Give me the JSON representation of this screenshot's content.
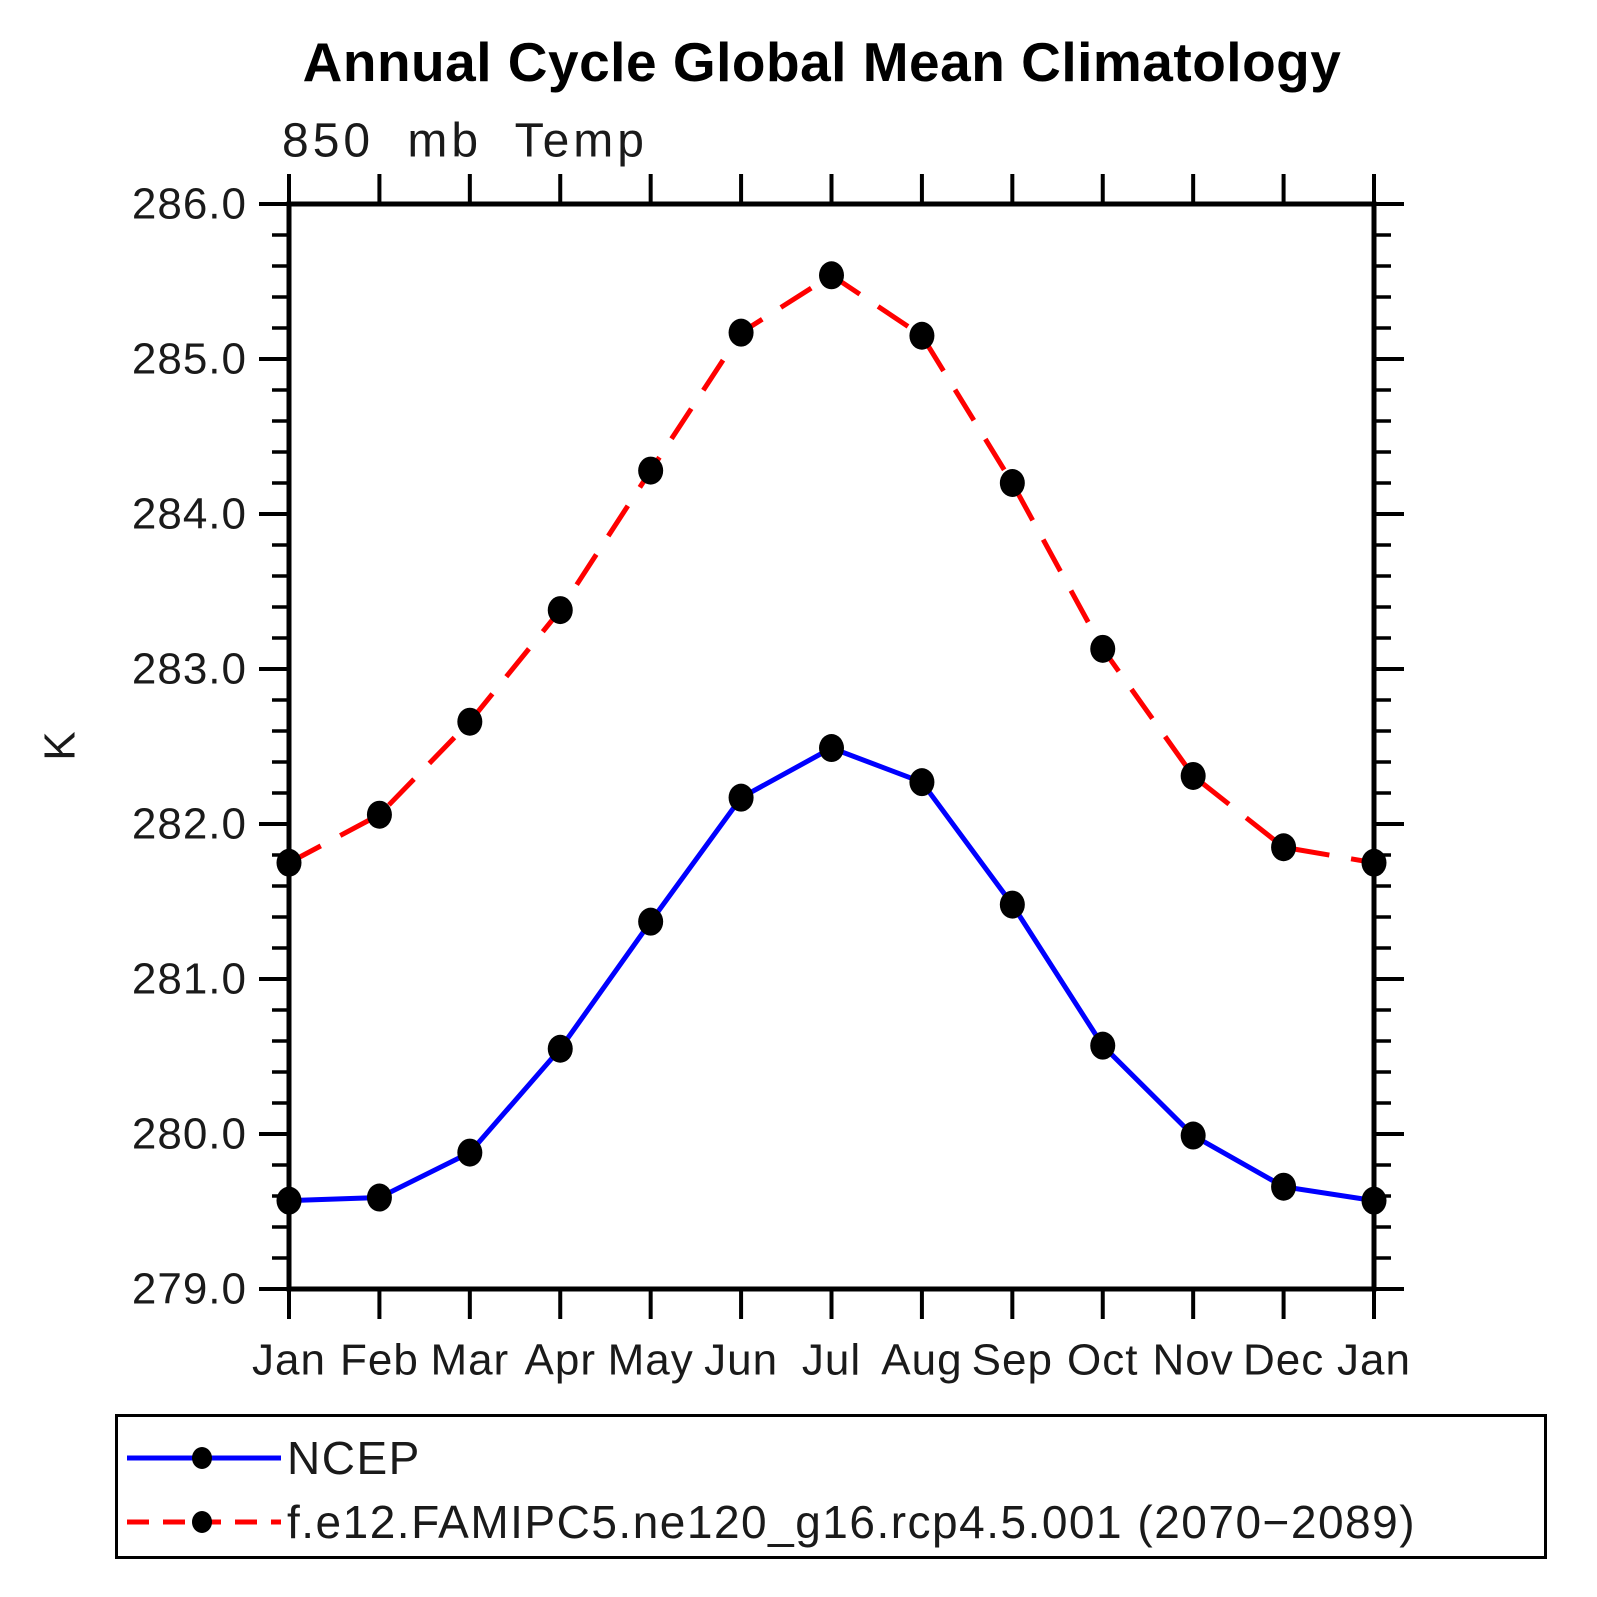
{
  "chart_data": {
    "type": "line",
    "title": "Annual Cycle Global Mean Climatology",
    "subtitle": "850 mb Temp",
    "ylabel": "K",
    "x_categories": [
      "Jan",
      "Feb",
      "Mar",
      "Apr",
      "May",
      "Jun",
      "Jul",
      "Aug",
      "Sep",
      "Oct",
      "Nov",
      "Dec",
      "Jan"
    ],
    "ylim": [
      279.0,
      286.0
    ],
    "ytick_values": [
      286.0,
      285.0,
      284.0,
      283.0,
      282.0,
      281.0,
      280.0,
      279.0
    ],
    "ytick_labels": [
      "286.0",
      "285.0",
      "284.0",
      "283.0",
      "282.0",
      "281.0",
      "280.0",
      "279.0"
    ],
    "minor_tick_interval": 0.2,
    "grid": false,
    "legend_position": "bottom-left box",
    "marker_color": "#000000",
    "axis_color": "#000000",
    "series": [
      {
        "name": "NCEP",
        "color": "#0000FF",
        "line_style": "solid",
        "values": [
          279.57,
          279.59,
          279.88,
          280.55,
          281.37,
          282.17,
          282.49,
          282.27,
          281.48,
          280.57,
          279.99,
          279.66,
          279.57
        ]
      },
      {
        "name": "f.e12.FAMIPC5.ne120_g16.rcp4.5.001 (2070−2089)",
        "color": "#FF0000",
        "line_style": "dashed",
        "values": [
          281.75,
          282.06,
          282.66,
          283.38,
          284.28,
          285.17,
          285.54,
          285.15,
          284.2,
          283.13,
          282.31,
          281.85,
          281.75
        ]
      }
    ]
  }
}
